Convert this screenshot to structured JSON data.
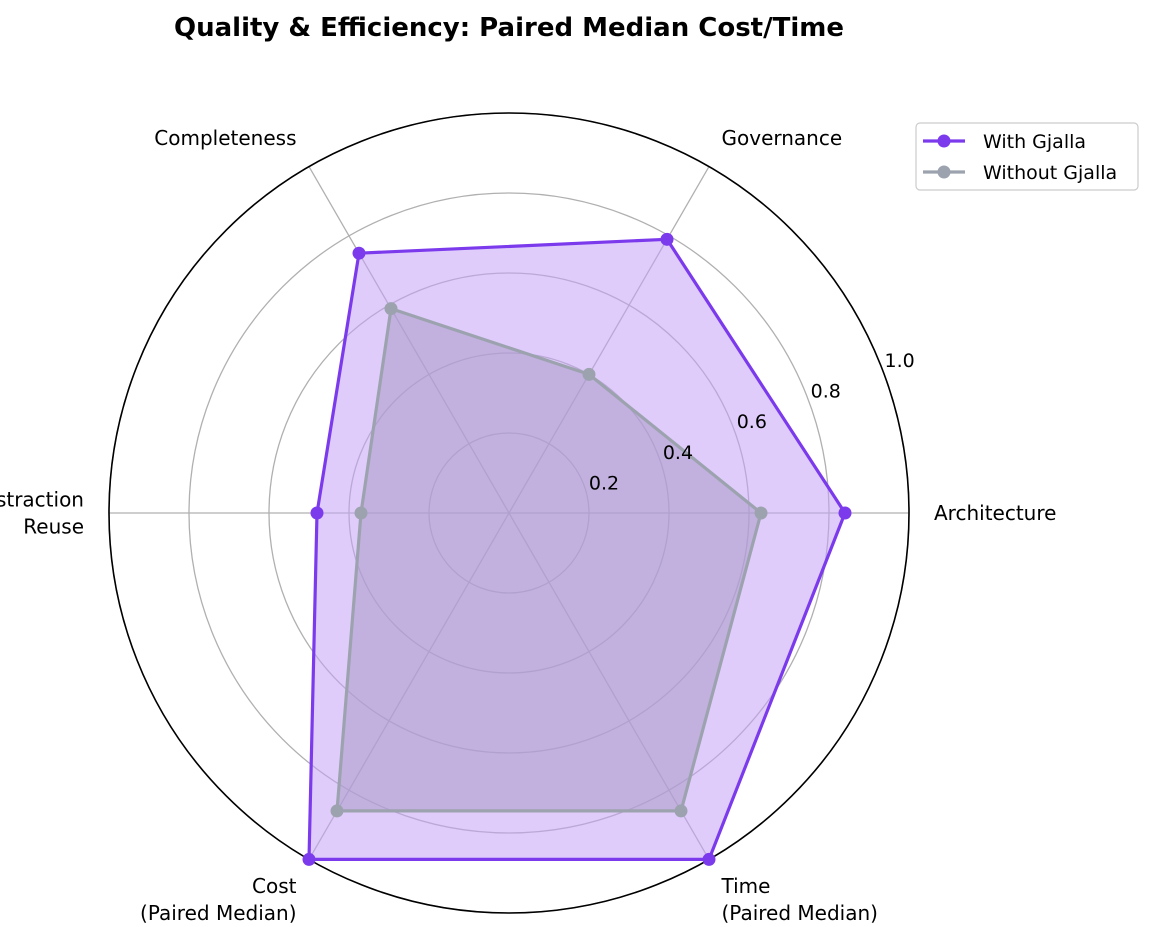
{
  "chart_data": {
    "type": "radar",
    "title": "Quality & Efficiency: Paired Median Cost/Time",
    "axes": [
      [
        "Architecture"
      ],
      [
        "Governance"
      ],
      [
        "Completeness"
      ],
      [
        "Abstraction",
        "Reuse"
      ],
      [
        "Cost",
        "(Paired Median)"
      ],
      [
        "Time",
        "(Paired Median)"
      ]
    ],
    "rlim": [
      0,
      1.0
    ],
    "rticks": [
      "0.2",
      "0.4",
      "0.6",
      "0.8",
      "1.0"
    ],
    "grid": true,
    "legend_position": "top-right",
    "series": [
      {
        "name": "With Gjalla",
        "color": "#7c3aed",
        "fill": "#c4a3f7",
        "values": [
          0.84,
          0.79,
          0.75,
          0.48,
          1.0,
          1.0
        ]
      },
      {
        "name": "Without Gjalla",
        "color": "#9ca3af",
        "fill": "#a99ac9",
        "values": [
          0.63,
          0.4,
          0.59,
          0.37,
          0.86,
          0.86
        ]
      }
    ]
  }
}
